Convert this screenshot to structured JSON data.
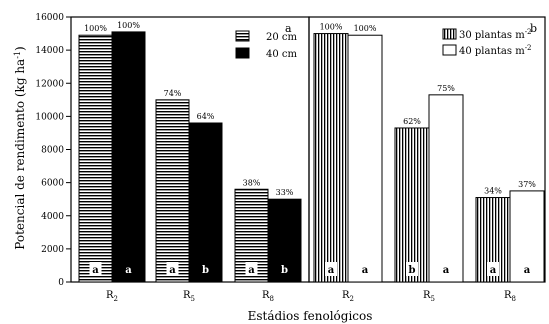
{
  "chart_data": {
    "type": "bar",
    "ylabel": "Potencial de rendimento (kg ha",
    "ylabel_sup": "-1",
    "ylabel_end": ")",
    "xlabel": "Estádios fenológicos",
    "ylim": [
      0,
      16000
    ],
    "yticks": [
      "0",
      "2000",
      "4000",
      "6000",
      "8000",
      "10000",
      "12000",
      "14000",
      "16000"
    ],
    "grid": false,
    "panels": [
      {
        "panel_label": "a",
        "legend_position": "top-right",
        "categories": [
          {
            "base": "R",
            "sub": "2"
          },
          {
            "base": "R",
            "sub": "5"
          },
          {
            "base": "R",
            "sub": "8"
          }
        ],
        "series": [
          {
            "name": "20 cm",
            "fill": "horizontal-stripes",
            "values": [
              14900,
              11000,
              5600
            ],
            "labels": [
              "100%",
              "74%",
              "38%"
            ],
            "letters": [
              "a",
              "a",
              "a"
            ]
          },
          {
            "name": "40 cm",
            "fill": "solid-black",
            "values": [
              15100,
              9600,
              5000
            ],
            "labels": [
              "100%",
              "64%",
              "33%"
            ],
            "letters": [
              "a",
              "b",
              "b"
            ]
          }
        ]
      },
      {
        "panel_label": "b",
        "legend_position": "top-right",
        "categories": [
          {
            "base": "R",
            "sub": "2"
          },
          {
            "base": "R",
            "sub": "5"
          },
          {
            "base": "R",
            "sub": "8"
          }
        ],
        "series": [
          {
            "name": "30 plantas m",
            "name_sup": "-2",
            "fill": "vertical-stripes",
            "values": [
              15000,
              9300,
              5100
            ],
            "labels": [
              "100%",
              "62%",
              "34%"
            ],
            "letters": [
              "a",
              "b",
              "a"
            ]
          },
          {
            "name": "40 plantas m",
            "name_sup": "-2",
            "fill": "white",
            "values": [
              14900,
              11300,
              5500
            ],
            "labels": [
              "100%",
              "75%",
              "37%"
            ],
            "letters": [
              "a",
              "a",
              "a"
            ]
          }
        ]
      }
    ]
  }
}
